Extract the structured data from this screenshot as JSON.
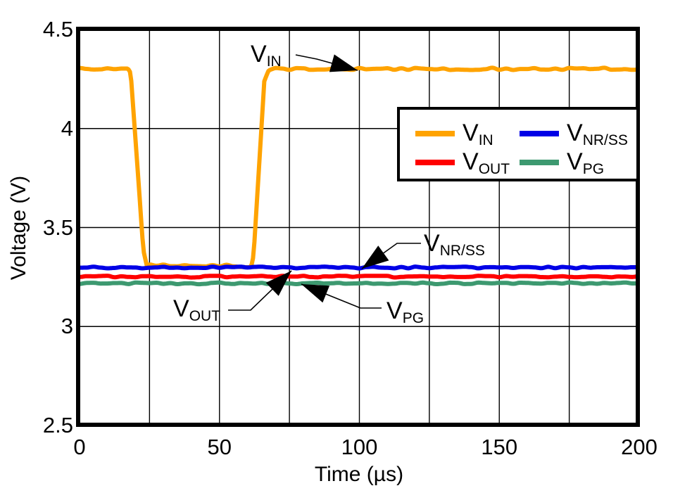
{
  "page": {
    "background": "#FFFFFF"
  },
  "chart_data": {
    "type": "line",
    "title": "",
    "xlabel": "Time (µs)",
    "ylabel": "Voltage (V)",
    "xlim": [
      0,
      200
    ],
    "ylim": [
      2.5,
      4.5
    ],
    "x_ticks": [
      "0",
      "50",
      "100",
      "150",
      "200"
    ],
    "y_ticks": [
      "4.5",
      "4",
      "3.5",
      "3",
      "2.5"
    ],
    "x_gridline_step_us": 25,
    "y_gridline_step_v": 0.5,
    "grid": true,
    "legend_position": "upper-right",
    "axis_color": "#000000",
    "series": [
      {
        "name": "V_IN",
        "main": "V",
        "sub": "IN",
        "color": "#FFA300",
        "points": [
          [
            0,
            4.303
          ],
          [
            17.3,
            4.303
          ],
          [
            18.3,
            4.28
          ],
          [
            22.8,
            3.39
          ],
          [
            24,
            3.308
          ],
          [
            61.3,
            3.305
          ],
          [
            62.2,
            3.36
          ],
          [
            66,
            4.24
          ],
          [
            67.6,
            4.292
          ],
          [
            70,
            4.3
          ],
          [
            200,
            4.302
          ]
        ]
      },
      {
        "name": "V_OUT",
        "main": "V",
        "sub": "OUT",
        "color": "#FF0000",
        "points": [
          [
            0,
            3.252
          ],
          [
            200,
            3.252
          ]
        ]
      },
      {
        "name": "V_NR/SS",
        "main": "V",
        "sub": "NR/SS",
        "color": "#0000E6",
        "points": [
          [
            0,
            3.298
          ],
          [
            200,
            3.298
          ]
        ]
      },
      {
        "name": "V_PG",
        "main": "V",
        "sub": "PG",
        "color": "#3D9970",
        "points": [
          [
            0,
            3.218
          ],
          [
            200,
            3.218
          ]
        ]
      }
    ]
  },
  "annotations": [
    {
      "main": "V",
      "sub": "IN"
    },
    {
      "main": "V",
      "sub": "NR/SS"
    },
    {
      "main": "V",
      "sub": "OUT"
    },
    {
      "main": "V",
      "sub": "PG"
    }
  ]
}
